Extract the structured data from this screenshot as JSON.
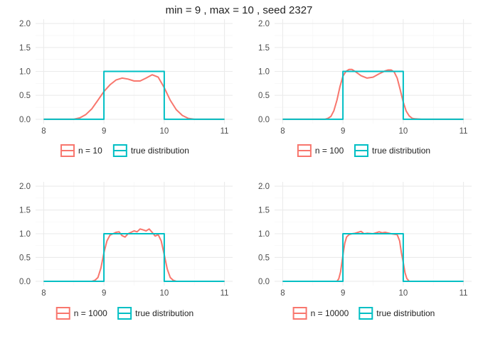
{
  "title": "min = 9 , max = 10 , seed 2327",
  "colors": {
    "sample": "#F8766D",
    "true": "#00BFC4"
  },
  "chart_data": [
    {
      "type": "line",
      "xlim": [
        8,
        11
      ],
      "ylim": [
        0,
        2
      ],
      "x_ticks": [
        "8",
        "9",
        "10",
        "11"
      ],
      "y_ticks": [
        "0.0",
        "0.5",
        "1.0",
        "1.5",
        "2.0"
      ],
      "legend": [
        "n = 10",
        "true distribution"
      ],
      "legend_position": "bottom",
      "series": [
        {
          "name": "n = 10",
          "x": [
            8.0,
            8.5,
            8.6,
            8.7,
            8.8,
            8.9,
            9.0,
            9.1,
            9.2,
            9.3,
            9.4,
            9.5,
            9.6,
            9.7,
            9.8,
            9.9,
            10.0,
            10.1,
            10.2,
            10.3,
            10.4,
            10.5,
            11.0
          ],
          "y": [
            0.0,
            0.0,
            0.03,
            0.1,
            0.22,
            0.4,
            0.58,
            0.72,
            0.82,
            0.86,
            0.84,
            0.8,
            0.8,
            0.86,
            0.93,
            0.88,
            0.66,
            0.4,
            0.2,
            0.08,
            0.02,
            0.0,
            0.0
          ]
        },
        {
          "name": "true distribution",
          "x": [
            8,
            9,
            9,
            10,
            10,
            11
          ],
          "y": [
            0,
            0,
            1,
            1,
            0,
            0
          ]
        }
      ]
    },
    {
      "type": "line",
      "xlim": [
        8,
        11
      ],
      "ylim": [
        0,
        2
      ],
      "x_ticks": [
        "8",
        "9",
        "10",
        "11"
      ],
      "y_ticks": [
        "0.0",
        "0.5",
        "1.0",
        "1.5",
        "2.0"
      ],
      "legend": [
        "n = 100",
        "true distribution"
      ],
      "legend_position": "bottom",
      "series": [
        {
          "name": "n = 100",
          "x": [
            8.0,
            8.7,
            8.75,
            8.8,
            8.85,
            8.9,
            8.95,
            9.0,
            9.05,
            9.1,
            9.15,
            9.2,
            9.3,
            9.4,
            9.5,
            9.6,
            9.7,
            9.75,
            9.8,
            9.85,
            9.9,
            9.95,
            10.0,
            10.05,
            10.1,
            10.15,
            10.2,
            10.3,
            11.0
          ],
          "y": [
            0.0,
            0.0,
            0.02,
            0.06,
            0.18,
            0.4,
            0.68,
            0.9,
            1.0,
            1.04,
            1.04,
            1.0,
            0.91,
            0.86,
            0.88,
            0.95,
            1.01,
            1.03,
            1.03,
            0.99,
            0.86,
            0.62,
            0.36,
            0.17,
            0.07,
            0.02,
            0.01,
            0.0,
            0.0
          ]
        },
        {
          "name": "true distribution",
          "x": [
            8,
            9,
            9,
            10,
            10,
            11
          ],
          "y": [
            0,
            0,
            1,
            1,
            0,
            0
          ]
        }
      ]
    },
    {
      "type": "line",
      "xlim": [
        8,
        11
      ],
      "ylim": [
        0,
        2
      ],
      "x_ticks": [
        "8",
        "9",
        "10",
        "11"
      ],
      "y_ticks": [
        "0.0",
        "0.5",
        "1.0",
        "1.5",
        "2.0"
      ],
      "legend": [
        "n = 1000",
        "true distribution"
      ],
      "legend_position": "bottom",
      "series": [
        {
          "name": "n = 1000",
          "x": [
            8.0,
            8.8,
            8.85,
            8.9,
            8.95,
            9.0,
            9.05,
            9.1,
            9.15,
            9.2,
            9.25,
            9.3,
            9.35,
            9.4,
            9.5,
            9.55,
            9.6,
            9.65,
            9.7,
            9.75,
            9.8,
            9.85,
            9.9,
            9.95,
            10.0,
            10.05,
            10.1,
            10.15,
            10.2,
            11.0
          ],
          "y": [
            0.0,
            0.0,
            0.02,
            0.08,
            0.28,
            0.6,
            0.85,
            0.97,
            1.0,
            1.03,
            1.04,
            0.96,
            0.93,
            1.0,
            1.06,
            1.04,
            1.1,
            1.08,
            1.06,
            1.1,
            1.03,
            0.95,
            0.98,
            0.85,
            0.56,
            0.26,
            0.08,
            0.02,
            0.0,
            0.0
          ]
        },
        {
          "name": "true distribution",
          "x": [
            8,
            9,
            9,
            10,
            10,
            11
          ],
          "y": [
            0,
            0,
            1,
            1,
            0,
            0
          ]
        }
      ]
    },
    {
      "type": "line",
      "xlim": [
        8,
        11
      ],
      "ylim": [
        0,
        2
      ],
      "x_ticks": [
        "8",
        "9",
        "10",
        "11"
      ],
      "y_ticks": [
        "0.0",
        "0.5",
        "1.0",
        "1.5",
        "2.0"
      ],
      "legend": [
        "n = 10000",
        "true distribution"
      ],
      "legend_position": "bottom",
      "series": [
        {
          "name": "n = 10000",
          "x": [
            8.0,
            8.9,
            8.93,
            8.96,
            9.0,
            9.03,
            9.06,
            9.1,
            9.15,
            9.2,
            9.3,
            9.35,
            9.4,
            9.5,
            9.6,
            9.65,
            9.7,
            9.8,
            9.9,
            9.94,
            9.97,
            10.0,
            10.03,
            10.06,
            10.1,
            11.0
          ],
          "y": [
            0.0,
            0.0,
            0.05,
            0.2,
            0.55,
            0.8,
            0.93,
            0.98,
            1.0,
            1.01,
            1.05,
            1.0,
            1.01,
            1.0,
            1.04,
            1.02,
            1.03,
            1.0,
            0.98,
            0.85,
            0.6,
            0.4,
            0.18,
            0.06,
            0.0,
            0.0
          ]
        },
        {
          "name": "true distribution",
          "x": [
            8,
            9,
            9,
            10,
            10,
            11
          ],
          "y": [
            0,
            0,
            1,
            1,
            0,
            0
          ]
        }
      ]
    }
  ]
}
